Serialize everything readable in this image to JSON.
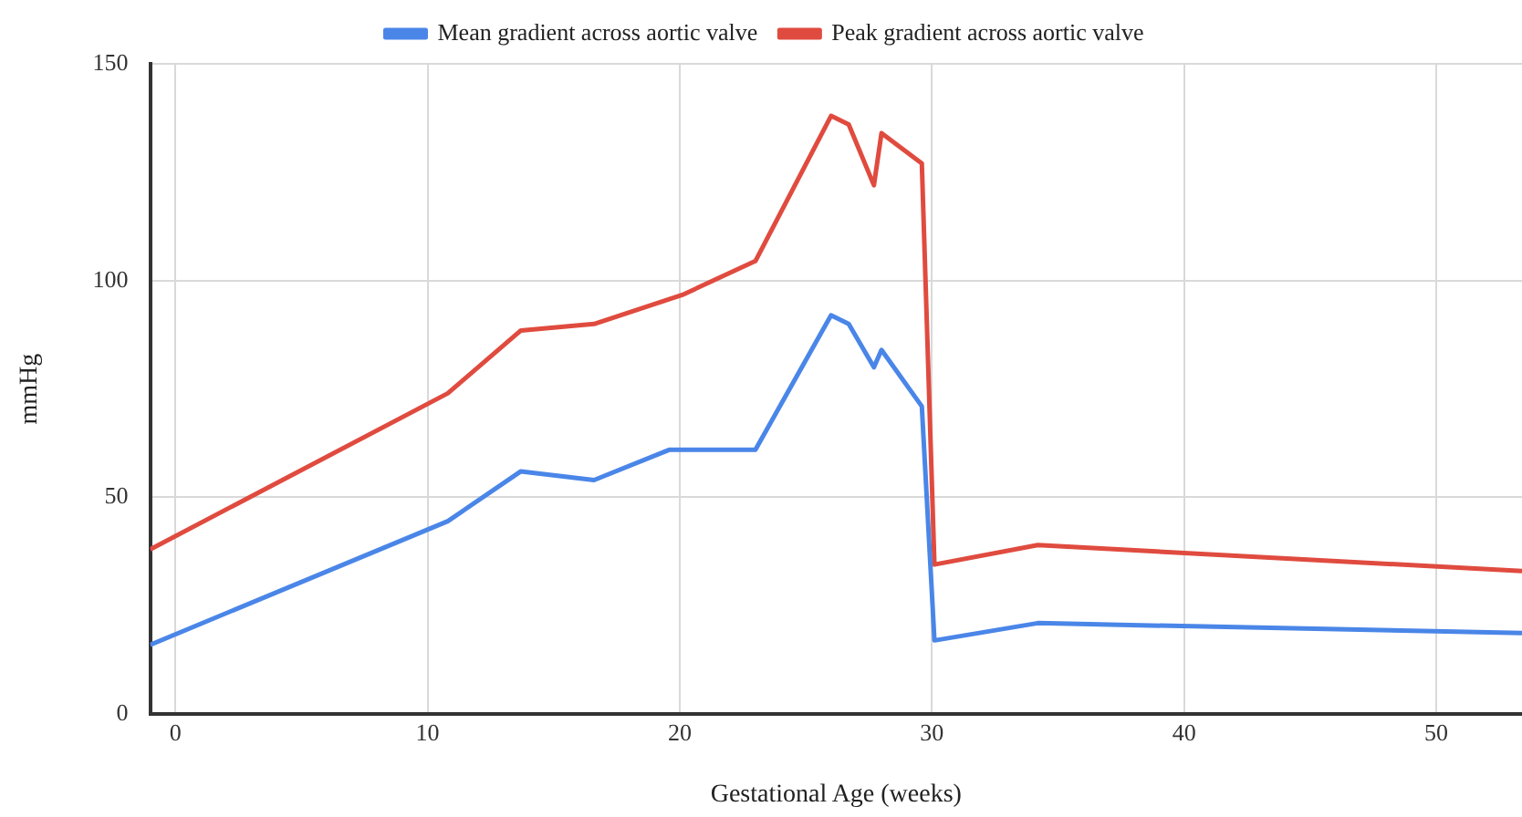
{
  "chart_data": {
    "type": "line",
    "xlabel": "Gestational Age (weeks)",
    "ylabel": "mmHg",
    "legend": "top",
    "grid": true,
    "marker": "none",
    "line_style": "solid",
    "xlim": [
      -1,
      53.4
    ],
    "xticks": [
      0,
      10,
      20,
      30,
      40,
      50
    ],
    "ylim": [
      0,
      150
    ],
    "yticks": [
      0,
      50,
      100,
      150
    ],
    "series": [
      {
        "name": "Mean gradient across aortic valve",
        "color": "#4a86e8",
        "x": [
          -1,
          10.8,
          13.7,
          16.6,
          19.6,
          23,
          26,
          26.7,
          27.7,
          28,
          29.6,
          30.1,
          34.2,
          53.4
        ],
        "values": [
          16,
          44.5,
          56,
          54,
          61,
          61,
          92,
          90,
          80,
          84,
          71,
          17,
          21,
          18.7
        ]
      },
      {
        "name": "Peak gradient across aortic valve",
        "color": "#e04b3f",
        "x": [
          -1,
          10.8,
          13.7,
          16.6,
          20.1,
          23,
          26,
          26.7,
          27.7,
          28,
          29.6,
          30.1,
          34.2,
          53.4
        ],
        "values": [
          38,
          74,
          88.5,
          90,
          96.7,
          104.5,
          138,
          136,
          122,
          134,
          127,
          34.5,
          39,
          33
        ]
      }
    ]
  }
}
